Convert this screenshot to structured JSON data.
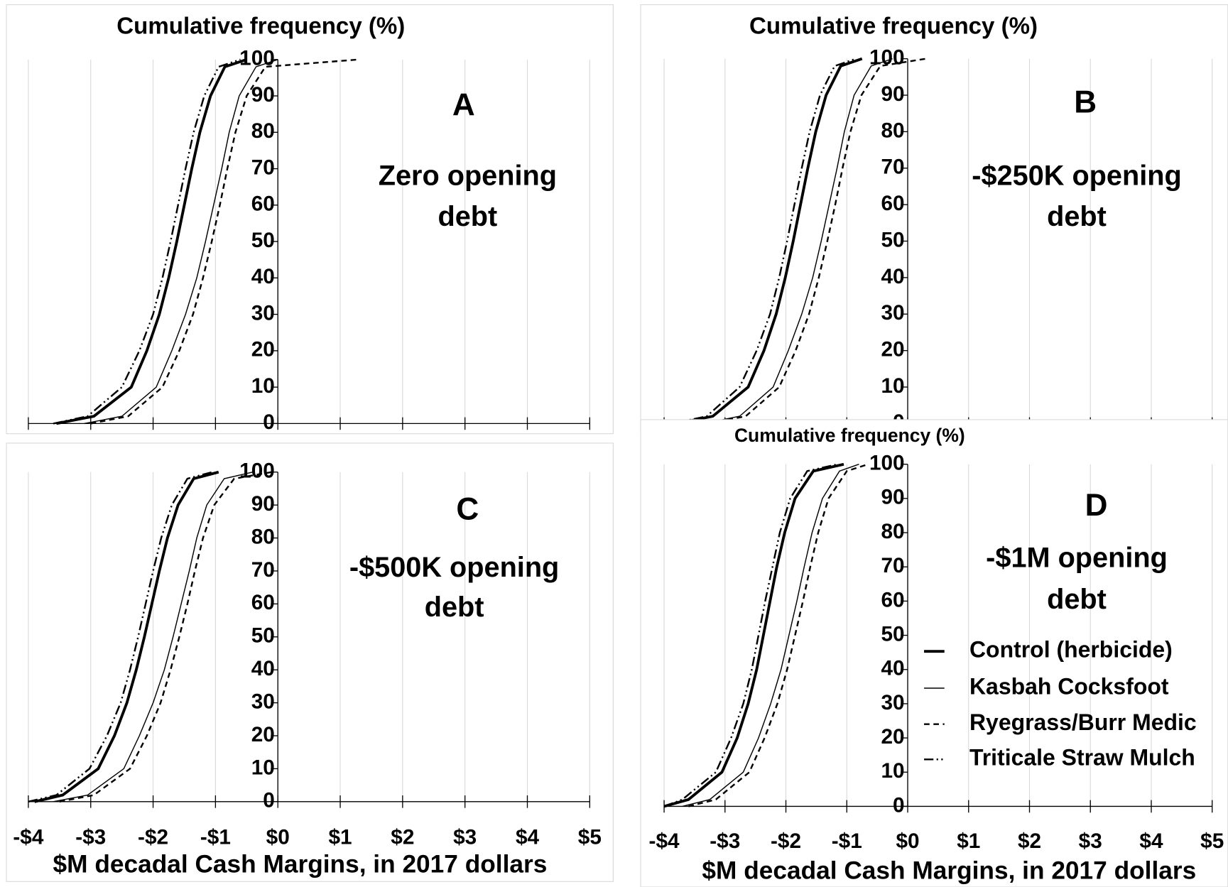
{
  "chart_data": [
    {
      "type": "line",
      "panel": "A",
      "title": "Cumulative frequency (%)",
      "annotation": [
        "Zero opening",
        "debt"
      ],
      "xlim": [
        -4,
        5
      ],
      "xticks": [
        -4,
        -3,
        -2,
        -1,
        0,
        1,
        2,
        3,
        4,
        5
      ],
      "show_xtick_labels": false,
      "ylim": [
        0,
        100
      ],
      "yticks": [
        0,
        10,
        20,
        30,
        40,
        50,
        60,
        70,
        80,
        90,
        100
      ],
      "grid": "x",
      "series": [
        {
          "color": "#000000",
          "line_style": "thick",
          "x": [
            -3.55,
            -2.95,
            -2.35,
            -2.1,
            -1.9,
            -1.75,
            -1.62,
            -1.5,
            -1.38,
            -1.25,
            -1.08,
            -0.85,
            -0.5
          ],
          "values": [
            0,
            2,
            10,
            20,
            30,
            40,
            50,
            60,
            70,
            80,
            90,
            98,
            100
          ]
        },
        {
          "color": "#000000",
          "line_style": "thin",
          "x": [
            -3.1,
            -2.5,
            -1.95,
            -1.7,
            -1.48,
            -1.3,
            -1.16,
            -1.03,
            -0.9,
            -0.78,
            -0.62,
            -0.35,
            0.0
          ],
          "values": [
            0,
            2,
            10,
            20,
            30,
            40,
            50,
            60,
            70,
            80,
            90,
            98,
            100
          ]
        },
        {
          "color": "#000000",
          "line_style": "dashed",
          "x": [
            -3.0,
            -2.4,
            -1.85,
            -1.58,
            -1.36,
            -1.2,
            -1.06,
            -0.93,
            -0.81,
            -0.68,
            -0.5,
            -0.2,
            1.3
          ],
          "values": [
            0,
            2,
            10,
            20,
            30,
            40,
            50,
            60,
            70,
            80,
            90,
            98,
            100
          ]
        },
        {
          "color": "#000000",
          "line_style": "dash-dot-dot",
          "x": [
            -3.6,
            -3.05,
            -2.5,
            -2.22,
            -2.0,
            -1.85,
            -1.72,
            -1.6,
            -1.48,
            -1.35,
            -1.18,
            -0.95,
            -0.6
          ],
          "values": [
            0,
            2,
            10,
            20,
            30,
            40,
            50,
            60,
            70,
            80,
            90,
            98,
            100
          ]
        }
      ]
    },
    {
      "type": "line",
      "panel": "B",
      "title": "Cumulative frequency (%)",
      "annotation": [
        "-$250K opening",
        "debt"
      ],
      "xlim": [
        -4,
        5
      ],
      "xticks": [
        -4,
        -3,
        -2,
        -1,
        0,
        1,
        2,
        3,
        4,
        5
      ],
      "show_xtick_labels": false,
      "ylim": [
        0,
        100
      ],
      "yticks": [
        0,
        10,
        20,
        30,
        40,
        50,
        60,
        70,
        80,
        90,
        100
      ],
      "grid": "x",
      "series": [
        {
          "color": "#000000",
          "line_style": "thick",
          "x": [
            -3.8,
            -3.2,
            -2.62,
            -2.36,
            -2.16,
            -2.01,
            -1.88,
            -1.76,
            -1.64,
            -1.51,
            -1.34,
            -1.1,
            -0.75
          ],
          "values": [
            0,
            2,
            10,
            20,
            30,
            40,
            50,
            60,
            70,
            80,
            90,
            98,
            100
          ]
        },
        {
          "color": "#000000",
          "line_style": "thin",
          "x": [
            -3.36,
            -2.76,
            -2.21,
            -1.96,
            -1.74,
            -1.56,
            -1.42,
            -1.29,
            -1.16,
            -1.04,
            -0.88,
            -0.6,
            -0.25
          ],
          "values": [
            0,
            2,
            10,
            20,
            30,
            40,
            50,
            60,
            70,
            80,
            90,
            98,
            100
          ]
        },
        {
          "color": "#000000",
          "line_style": "dashed",
          "x": [
            -3.26,
            -2.66,
            -2.11,
            -1.84,
            -1.62,
            -1.46,
            -1.32,
            -1.19,
            -1.07,
            -0.94,
            -0.76,
            -0.45,
            0.3
          ],
          "values": [
            0,
            2,
            10,
            20,
            30,
            40,
            50,
            60,
            70,
            80,
            90,
            98,
            100
          ]
        },
        {
          "color": "#000000",
          "line_style": "dash-dot-dot",
          "x": [
            -3.86,
            -3.3,
            -2.76,
            -2.48,
            -2.26,
            -2.11,
            -1.98,
            -1.86,
            -1.74,
            -1.61,
            -1.44,
            -1.2,
            -0.85
          ],
          "values": [
            0,
            2,
            10,
            20,
            30,
            40,
            50,
            60,
            70,
            80,
            90,
            98,
            100
          ]
        }
      ]
    },
    {
      "type": "line",
      "panel": "C",
      "annotation": [
        "-$500K opening",
        "debt"
      ],
      "xlabel": "$M decadal Cash Margins, in 2017 dollars",
      "xlim": [
        -4,
        5
      ],
      "xticks": [
        {
          "value": -4,
          "label": "-$4"
        },
        {
          "value": -3,
          "label": "-$3"
        },
        {
          "value": -2,
          "label": "-$2"
        },
        {
          "value": -1,
          "label": "-$1"
        },
        {
          "value": 0,
          "label": "$0"
        },
        {
          "value": 1,
          "label": "$1"
        },
        {
          "value": 2,
          "label": "$2"
        },
        {
          "value": 3,
          "label": "$3"
        },
        {
          "value": 4,
          "label": "$4"
        },
        {
          "value": 5,
          "label": "$5"
        }
      ],
      "show_xtick_labels": true,
      "ylim": [
        0,
        100
      ],
      "yticks": [
        0,
        10,
        20,
        30,
        40,
        50,
        60,
        70,
        80,
        90,
        100
      ],
      "grid": "x",
      "series": [
        {
          "color": "#000000",
          "line_style": "thick",
          "x": [
            -3.9,
            -3.45,
            -2.88,
            -2.62,
            -2.42,
            -2.27,
            -2.14,
            -2.02,
            -1.9,
            -1.77,
            -1.6,
            -1.35,
            -0.95
          ],
          "values": [
            0,
            2,
            10,
            20,
            30,
            40,
            50,
            60,
            70,
            80,
            90,
            98,
            100
          ]
        },
        {
          "color": "#000000",
          "line_style": "thin",
          "x": [
            -3.6,
            -3.05,
            -2.47,
            -2.22,
            -2.0,
            -1.82,
            -1.68,
            -1.55,
            -1.42,
            -1.3,
            -1.14,
            -0.86,
            -0.4
          ],
          "values": [
            0,
            2,
            10,
            20,
            30,
            40,
            50,
            60,
            70,
            80,
            90,
            98,
            100
          ]
        },
        {
          "color": "#000000",
          "line_style": "dashed",
          "x": [
            -3.5,
            -2.95,
            -2.37,
            -2.1,
            -1.88,
            -1.72,
            -1.58,
            -1.45,
            -1.33,
            -1.2,
            -1.02,
            -0.7,
            -0.1
          ],
          "values": [
            0,
            2,
            10,
            20,
            30,
            40,
            50,
            60,
            70,
            80,
            90,
            98,
            100
          ]
        },
        {
          "color": "#000000",
          "line_style": "dash-dot-dot",
          "x": [
            -4.0,
            -3.55,
            -3.02,
            -2.74,
            -2.52,
            -2.37,
            -2.24,
            -2.12,
            -2.0,
            -1.87,
            -1.7,
            -1.45,
            -1.05
          ],
          "values": [
            0,
            2,
            10,
            20,
            30,
            40,
            50,
            60,
            70,
            80,
            90,
            98,
            100
          ]
        }
      ]
    },
    {
      "type": "line",
      "panel": "D",
      "title": "Cumulative frequency (%)",
      "annotation": [
        "-$1M opening",
        "debt"
      ],
      "xlabel": "$M decadal Cash Margins, in 2017 dollars",
      "xlim": [
        -4,
        5
      ],
      "xticks": [
        {
          "value": -4,
          "label": "-$4"
        },
        {
          "value": -3,
          "label": "-$3"
        },
        {
          "value": -2,
          "label": "-$2"
        },
        {
          "value": -1,
          "label": "-$1"
        },
        {
          "value": 0,
          "label": "$0"
        },
        {
          "value": 1,
          "label": "$1"
        },
        {
          "value": 2,
          "label": "$2"
        },
        {
          "value": 3,
          "label": "$3"
        },
        {
          "value": 4,
          "label": "$4"
        },
        {
          "value": 5,
          "label": "$5"
        }
      ],
      "show_xtick_labels": true,
      "ylim": [
        0,
        100
      ],
      "yticks": [
        0,
        10,
        20,
        30,
        40,
        50,
        60,
        70,
        80,
        90,
        100
      ],
      "grid": "x",
      "legend": "right",
      "series": [
        {
          "name": "Control (herbicide)",
          "color": "#000000",
          "line_style": "thick",
          "x": [
            -4.0,
            -3.6,
            -3.05,
            -2.8,
            -2.62,
            -2.48,
            -2.37,
            -2.26,
            -2.15,
            -2.02,
            -1.85,
            -1.55,
            -1.05
          ],
          "values": [
            0,
            2,
            10,
            20,
            30,
            40,
            50,
            60,
            70,
            80,
            90,
            98,
            100
          ]
        },
        {
          "name": "Kasbah Cocksfoot",
          "color": "#000000",
          "line_style": "thin",
          "x": [
            -3.7,
            -3.25,
            -2.7,
            -2.45,
            -2.25,
            -2.08,
            -1.95,
            -1.82,
            -1.7,
            -1.57,
            -1.4,
            -1.12,
            -0.8
          ],
          "values": [
            0,
            2,
            10,
            20,
            30,
            40,
            50,
            60,
            70,
            80,
            90,
            98,
            100
          ]
        },
        {
          "name": "Ryegrass/Burr Medic",
          "color": "#000000",
          "line_style": "dashed",
          "x": [
            -3.6,
            -3.15,
            -2.6,
            -2.35,
            -2.14,
            -1.98,
            -1.85,
            -1.72,
            -1.6,
            -1.47,
            -1.3,
            -1.0,
            -0.65
          ],
          "values": [
            0,
            2,
            10,
            20,
            30,
            40,
            50,
            60,
            70,
            80,
            90,
            98,
            100
          ]
        },
        {
          "name": "Triticale Straw Mulch",
          "color": "#000000",
          "line_style": "dash-dot-dot",
          "x": [
            -4.0,
            -3.7,
            -3.15,
            -2.9,
            -2.7,
            -2.56,
            -2.45,
            -2.34,
            -2.22,
            -2.1,
            -1.93,
            -1.65,
            -1.15
          ],
          "values": [
            0,
            2,
            10,
            20,
            30,
            40,
            50,
            60,
            70,
            80,
            90,
            98,
            100
          ]
        }
      ]
    }
  ]
}
